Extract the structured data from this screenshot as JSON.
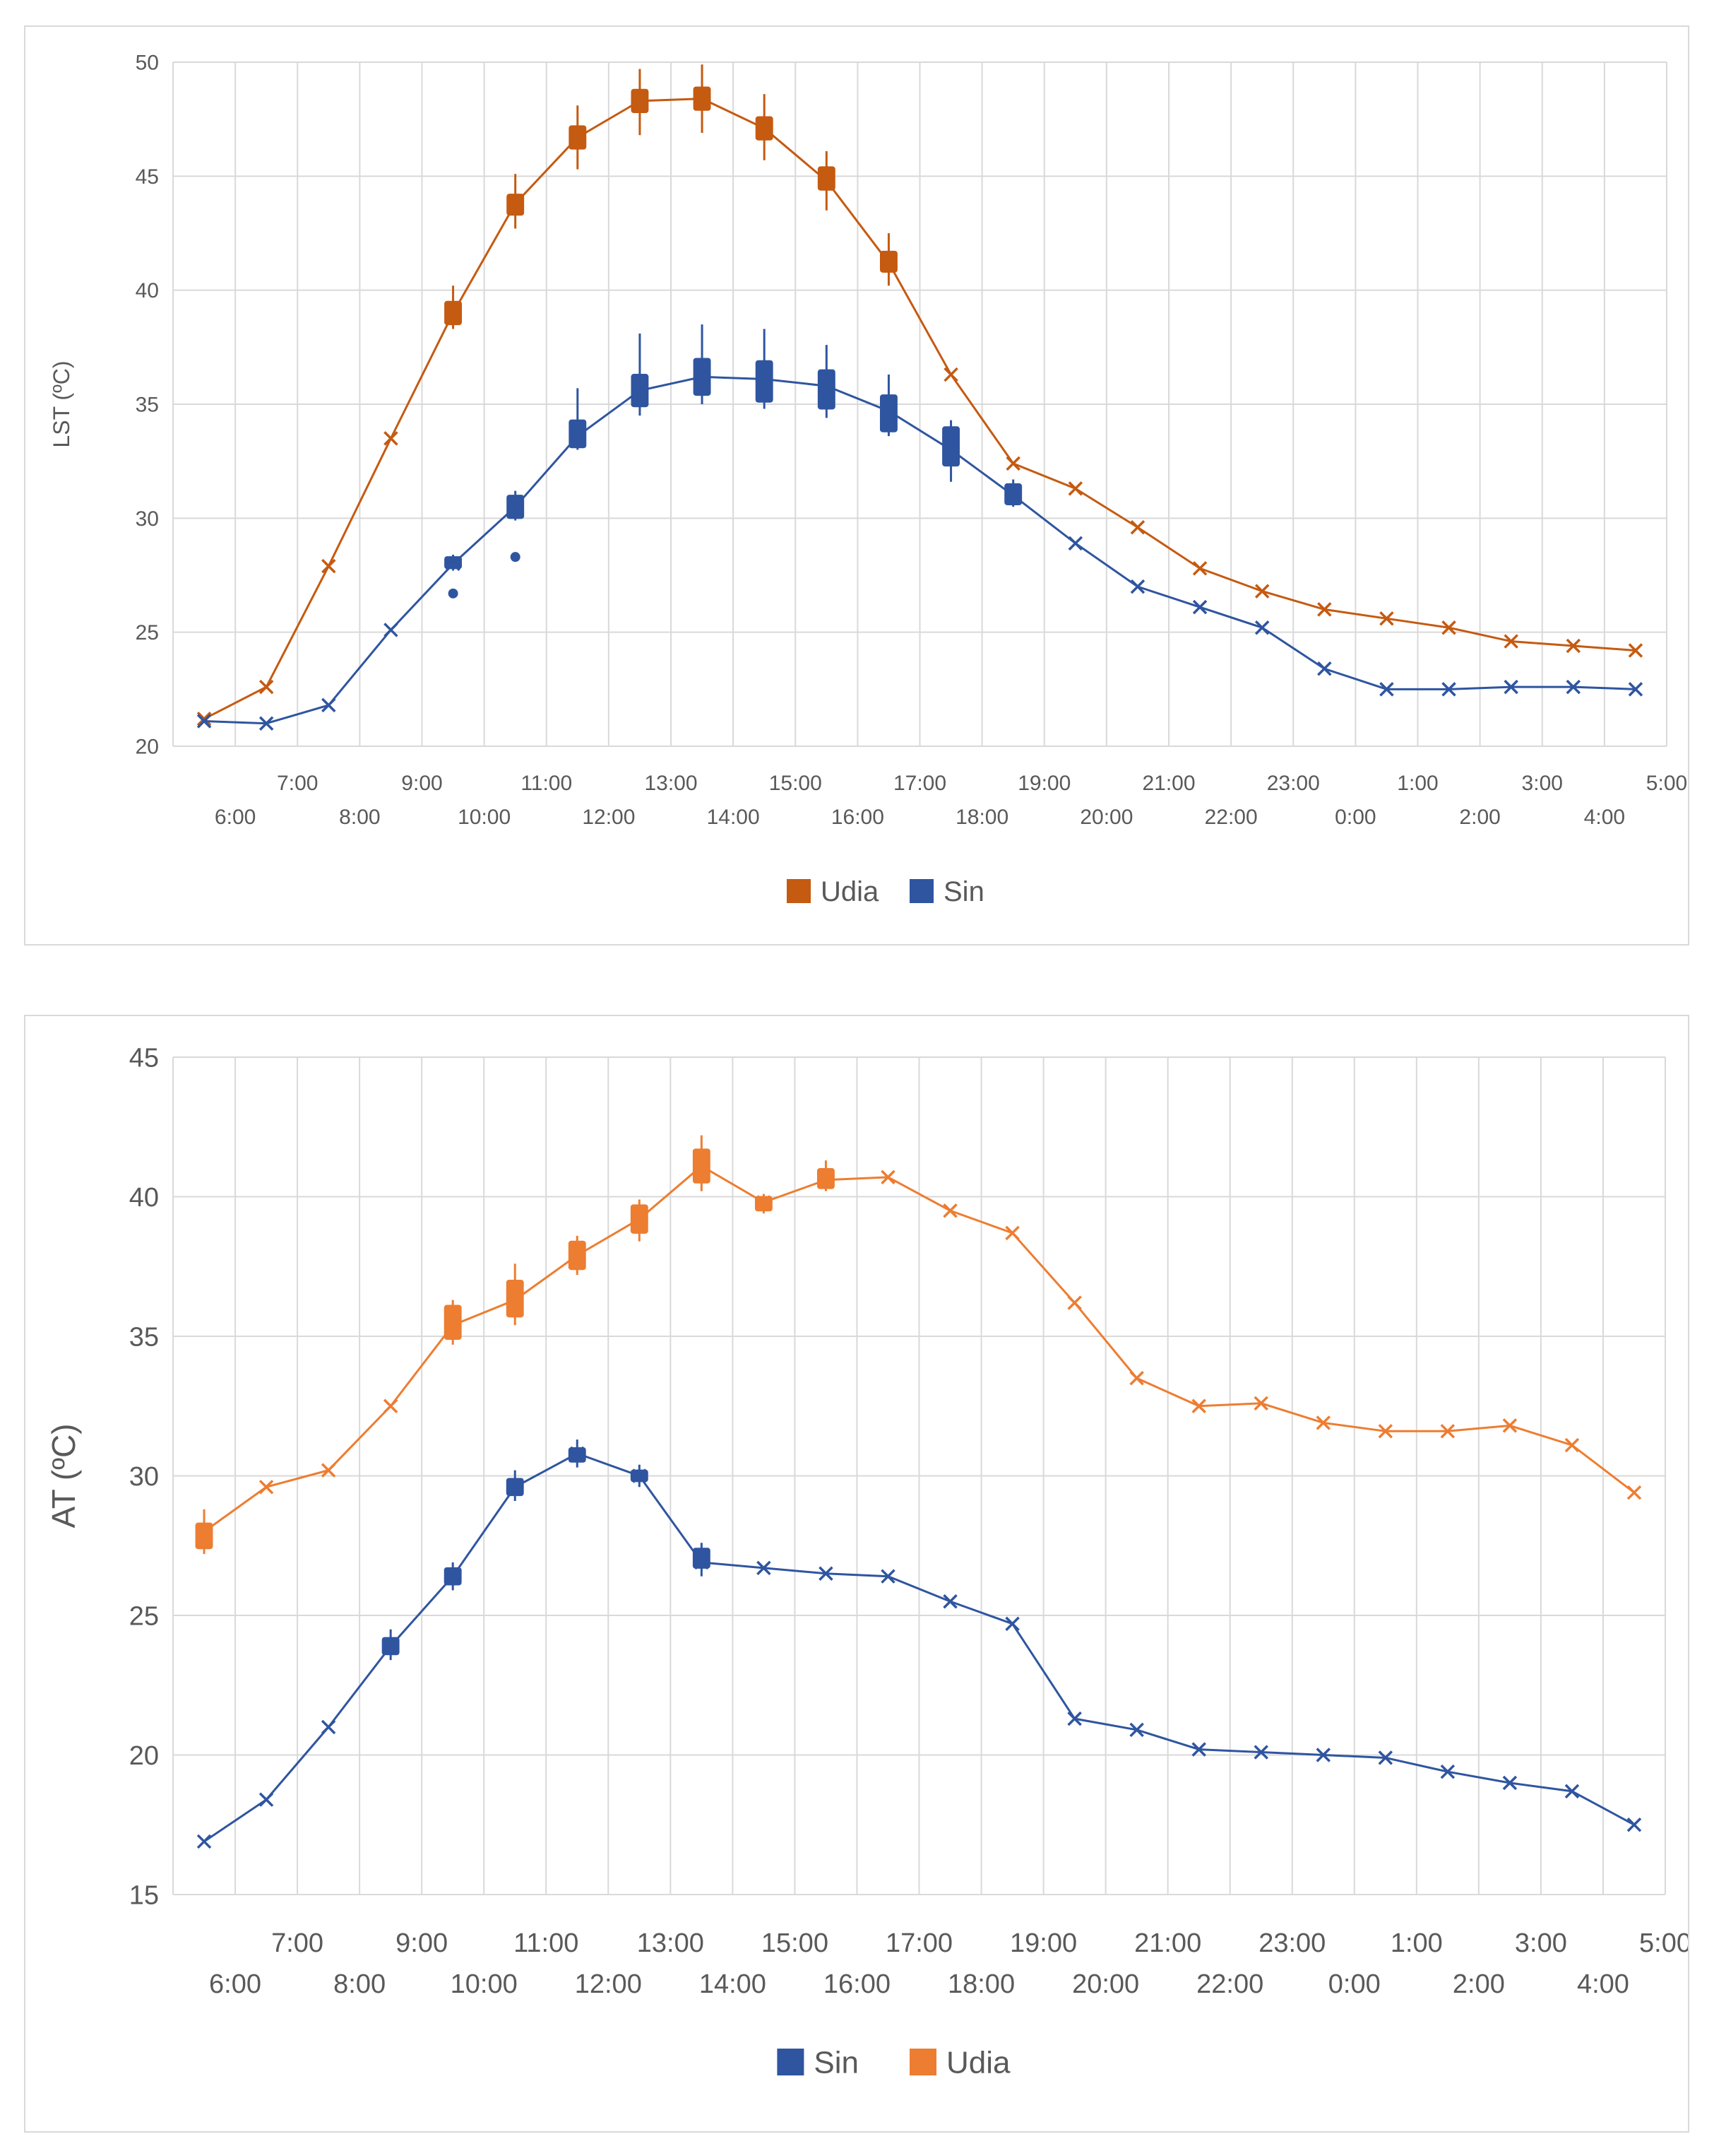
{
  "charts": [
    {
      "type": "line",
      "title": "",
      "ylabel": "LST (ºC)",
      "xlabel": "",
      "ylim": [
        20,
        50
      ],
      "yticks": [
        20,
        25,
        30,
        35,
        40,
        45,
        50
      ],
      "grid": true,
      "legend_position": "bottom",
      "categories": [
        "6:00",
        "7:00",
        "8:00",
        "9:00",
        "10:00",
        "11:00",
        "12:00",
        "13:00",
        "14:00",
        "15:00",
        "16:00",
        "17:00",
        "18:00",
        "19:00",
        "20:00",
        "21:00",
        "22:00",
        "23:00",
        "0:00",
        "1:00",
        "2:00",
        "3:00",
        "4:00",
        "5:00"
      ],
      "legend": [
        "Udia",
        "Sin"
      ],
      "series": [
        {
          "name": "Udia",
          "color": "#c55a11",
          "values": [
            21.2,
            22.6,
            27.9,
            33.5,
            39.0,
            43.8,
            46.7,
            48.3,
            48.4,
            47.1,
            44.8,
            41.2,
            36.3,
            32.4,
            31.3,
            29.6,
            27.8,
            26.8,
            26.0,
            25.6,
            25.2,
            24.6,
            24.4,
            24.2
          ],
          "boxes": [
            null,
            null,
            null,
            null,
            {
              "low": 38.3,
              "q1": 38.5,
              "q3": 39.5,
              "high": 40.2
            },
            {
              "low": 42.7,
              "q1": 43.3,
              "q3": 44.2,
              "high": 45.1
            },
            {
              "low": 45.3,
              "q1": 46.2,
              "q3": 47.2,
              "high": 48.1
            },
            {
              "low": 46.8,
              "q1": 47.8,
              "q3": 48.8,
              "high": 49.7
            },
            {
              "low": 46.9,
              "q1": 47.9,
              "q3": 48.9,
              "high": 49.9
            },
            {
              "low": 45.7,
              "q1": 46.6,
              "q3": 47.6,
              "high": 48.6
            },
            {
              "low": 43.5,
              "q1": 44.4,
              "q3": 45.4,
              "high": 46.1
            },
            {
              "low": 40.2,
              "q1": 40.8,
              "q3": 41.7,
              "high": 42.5
            },
            null,
            null,
            null,
            null,
            null,
            null,
            null,
            null,
            null,
            null,
            null,
            null
          ]
        },
        {
          "name": "Sin",
          "color": "#2f55a0",
          "values": [
            21.1,
            21.0,
            21.8,
            25.1,
            28.0,
            30.5,
            33.6,
            35.6,
            36.2,
            36.1,
            35.8,
            34.7,
            33.0,
            31.0,
            28.9,
            27.0,
            26.1,
            25.2,
            23.4,
            22.5,
            22.5,
            22.6,
            22.6,
            22.5
          ],
          "boxes": [
            null,
            null,
            null,
            null,
            {
              "low": 27.7,
              "q1": 27.8,
              "q3": 28.3,
              "high": 28.4
            },
            {
              "low": 29.9,
              "q1": 30.0,
              "q3": 31.0,
              "high": 31.2
            },
            {
              "low": 33.0,
              "q1": 33.1,
              "q3": 34.3,
              "high": 35.7
            },
            {
              "low": 34.5,
              "q1": 34.9,
              "q3": 36.3,
              "high": 38.1
            },
            {
              "low": 35.0,
              "q1": 35.4,
              "q3": 37.0,
              "high": 38.5
            },
            {
              "low": 34.8,
              "q1": 35.1,
              "q3": 36.9,
              "high": 38.3
            },
            {
              "low": 34.4,
              "q1": 34.8,
              "q3": 36.5,
              "high": 37.6
            },
            {
              "low": 33.6,
              "q1": 33.8,
              "q3": 35.4,
              "high": 36.3
            },
            {
              "low": 31.6,
              "q1": 32.3,
              "q3": 34.0,
              "high": 34.3
            },
            {
              "low": 30.5,
              "q1": 30.6,
              "q3": 31.5,
              "high": 31.7
            },
            null,
            null,
            null,
            null,
            null,
            null,
            null,
            null,
            null,
            null
          ],
          "outliers": [
            {
              "category": "10:00",
              "value": 26.7
            },
            {
              "category": "11:00",
              "value": 28.3
            }
          ]
        }
      ]
    },
    {
      "type": "line",
      "title": "",
      "ylabel": "AT (ºC)",
      "xlabel": "",
      "ylim": [
        15,
        45
      ],
      "yticks": [
        15,
        20,
        25,
        30,
        35,
        40,
        45
      ],
      "grid": true,
      "legend_position": "bottom",
      "categories": [
        "6:00",
        "7:00",
        "8:00",
        "9:00",
        "10:00",
        "11:00",
        "12:00",
        "13:00",
        "14:00",
        "15:00",
        "16:00",
        "17:00",
        "18:00",
        "19:00",
        "20:00",
        "21:00",
        "22:00",
        "23:00",
        "0:00",
        "1:00",
        "2:00",
        "3:00",
        "4:00",
        "5:00"
      ],
      "legend": [
        "Sin",
        "Udia"
      ],
      "series": [
        {
          "name": "Sin",
          "color": "#2f55a0",
          "values": [
            16.9,
            18.4,
            21.0,
            23.9,
            26.4,
            29.6,
            30.8,
            30.0,
            26.9,
            26.7,
            26.5,
            26.4,
            25.5,
            24.7,
            21.3,
            20.9,
            20.2,
            20.1,
            20.0,
            19.9,
            19.4,
            19.0,
            18.7,
            17.5
          ],
          "boxes": [
            null,
            null,
            null,
            {
              "low": 23.4,
              "q1": 23.6,
              "q3": 24.2,
              "high": 24.5
            },
            {
              "low": 25.9,
              "q1": 26.1,
              "q3": 26.7,
              "high": 26.9
            },
            {
              "low": 29.1,
              "q1": 29.3,
              "q3": 29.9,
              "high": 30.2
            },
            {
              "low": 30.3,
              "q1": 30.5,
              "q3": 31.0,
              "high": 31.3
            },
            {
              "low": 29.6,
              "q1": 29.8,
              "q3": 30.2,
              "high": 30.4
            },
            {
              "low": 26.4,
              "q1": 26.7,
              "q3": 27.4,
              "high": 27.6
            },
            null,
            null,
            null,
            null,
            null,
            null,
            null,
            null,
            null,
            null,
            null,
            null,
            null,
            null,
            null
          ]
        },
        {
          "name": "Udia",
          "color": "#ed7d31",
          "values": [
            28.0,
            29.6,
            30.2,
            32.5,
            35.4,
            36.3,
            37.9,
            39.2,
            41.1,
            39.8,
            40.6,
            40.7,
            39.5,
            38.7,
            36.2,
            33.5,
            32.5,
            32.6,
            31.9,
            31.6,
            31.6,
            31.8,
            31.1,
            29.4
          ],
          "boxes": [
            {
              "low": 27.2,
              "q1": 27.4,
              "q3": 28.3,
              "high": 28.8
            },
            null,
            null,
            null,
            {
              "low": 34.7,
              "q1": 34.9,
              "q3": 36.1,
              "high": 36.3
            },
            {
              "low": 35.4,
              "q1": 35.7,
              "q3": 37.0,
              "high": 37.6
            },
            {
              "low": 37.2,
              "q1": 37.4,
              "q3": 38.4,
              "high": 38.6
            },
            {
              "low": 38.4,
              "q1": 38.7,
              "q3": 39.7,
              "high": 39.9
            },
            {
              "low": 40.2,
              "q1": 40.5,
              "q3": 41.7,
              "high": 42.2
            },
            {
              "low": 39.4,
              "q1": 39.5,
              "q3": 40.0,
              "high": 40.1
            },
            {
              "low": 40.2,
              "q1": 40.3,
              "q3": 41.0,
              "high": 41.3
            },
            null,
            null,
            null,
            null,
            null,
            null,
            null,
            null,
            null,
            null,
            null,
            null,
            null
          ]
        }
      ]
    }
  ]
}
